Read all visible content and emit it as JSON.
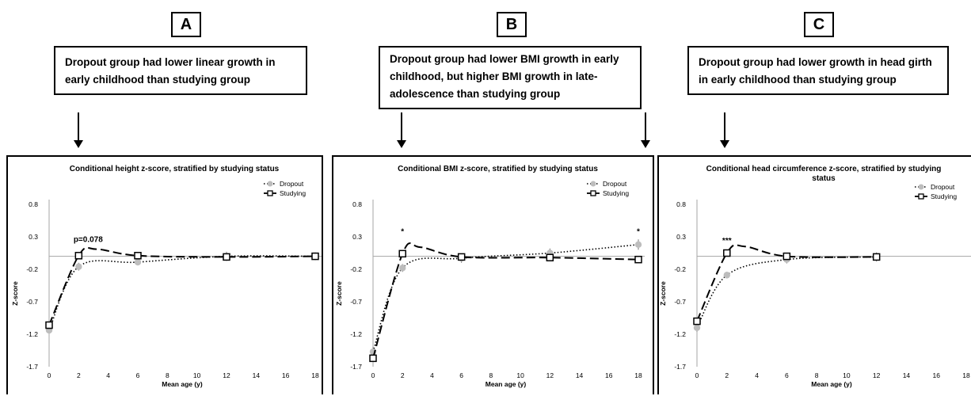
{
  "panels": [
    {
      "letter": "A",
      "description": [
        "Dropout group had lower linear growth in",
        "early childhood than studying group"
      ]
    },
    {
      "letter": "B",
      "description": [
        "Dropout group had lower BMI growth in early",
        "childhood, but higher BMI growth in late-",
        "adolescence than studying group"
      ]
    },
    {
      "letter": "C",
      "description": [
        "Dropout group had lower growth in head girth",
        "in early childhood than studying group"
      ]
    }
  ],
  "colors": {
    "dropout": "#bdbdbd",
    "studying": "#000000",
    "axis": "#a6a6a6"
  },
  "chart_data": [
    {
      "type": "line",
      "title": [
        "Conditional height z-score, stratified by studying status"
      ],
      "xlabel": "Mean age (y)",
      "ylabel": "Z-score",
      "xlim": [
        0,
        18
      ],
      "ylim": [
        -1.7,
        0.8
      ],
      "xticks": [
        "0",
        "2",
        "4",
        "6",
        "8",
        "10",
        "12",
        "14",
        "16",
        "18"
      ],
      "yticks": [
        "0.8",
        "0.3",
        "-0.2",
        "-0.7",
        "-1.2",
        "-1.7"
      ],
      "legend": "top-right",
      "series": [
        {
          "name": "Dropout",
          "x": [
            0,
            2,
            6,
            12,
            18
          ],
          "y": [
            -1.14,
            -0.16,
            -0.09,
            0.0,
            0.0
          ],
          "err": [
            0.05,
            0.06,
            0.05,
            0.07,
            0.06
          ]
        },
        {
          "name": "Studying",
          "x": [
            0,
            2,
            6,
            12,
            18
          ],
          "y": [
            -1.06,
            0.01,
            0.01,
            -0.01,
            0.0
          ],
          "err": [
            0.03,
            0.04,
            0.03,
            0.05,
            0.05
          ]
        }
      ],
      "annotations": [
        {
          "text": "p=0.078",
          "x": 2,
          "y": 0.22
        }
      ]
    },
    {
      "type": "line",
      "title": [
        "Conditional BMI z-score, stratified by studying status"
      ],
      "xlabel": "Mean age (y)",
      "ylabel": "Z-score",
      "xlim": [
        0,
        18
      ],
      "ylim": [
        -1.7,
        0.8
      ],
      "xticks": [
        "0",
        "2",
        "4",
        "6",
        "8",
        "10",
        "12",
        "14",
        "16",
        "18"
      ],
      "yticks": [
        "0.8",
        "0.3",
        "-0.2",
        "-0.7",
        "-1.2",
        "-1.7"
      ],
      "legend": "top-right",
      "series": [
        {
          "name": "Dropout",
          "x": [
            0,
            2,
            6,
            12,
            18
          ],
          "y": [
            -1.47,
            -0.18,
            -0.03,
            0.05,
            0.18
          ],
          "err": [
            0.07,
            0.06,
            0.07,
            0.07,
            0.08
          ]
        },
        {
          "name": "Studying",
          "x": [
            0,
            2,
            6,
            12,
            18
          ],
          "y": [
            -1.57,
            0.04,
            -0.01,
            -0.02,
            -0.05
          ],
          "err": [
            0.04,
            0.03,
            0.05,
            0.04,
            0.04
          ]
        }
      ],
      "annotations": [
        {
          "text": "*",
          "x": 2,
          "y": 0.34
        },
        {
          "text": "*",
          "x": 18,
          "y": 0.34
        }
      ]
    },
    {
      "type": "line",
      "title": [
        "Conditional head circumference z-score, stratified by studying",
        "status"
      ],
      "xlabel": "Mean age (y)",
      "ylabel": "Z-score",
      "xlim": [
        0,
        18
      ],
      "ylim": [
        -1.7,
        0.8
      ],
      "xticks": [
        "0",
        "2",
        "4",
        "6",
        "8",
        "10",
        "12",
        "14",
        "16",
        "18"
      ],
      "yticks": [
        "0.8",
        "0.3",
        "-0.2",
        "-0.7",
        "-1.2",
        "-1.7"
      ],
      "legend": "top-right",
      "series": [
        {
          "name": "Dropout",
          "x": [
            0,
            2,
            6,
            12
          ],
          "y": [
            -1.1,
            -0.29,
            -0.05,
            -0.01
          ],
          "err": [
            0.06,
            0.05,
            0.06,
            0.07
          ]
        },
        {
          "name": "Studying",
          "x": [
            0,
            2,
            6,
            12
          ],
          "y": [
            -1.0,
            0.05,
            0.0,
            -0.01
          ],
          "err": [
            0.03,
            0.03,
            0.05,
            0.05
          ]
        }
      ],
      "annotations": [
        {
          "text": "***",
          "x": 2,
          "y": 0.2
        }
      ]
    }
  ]
}
